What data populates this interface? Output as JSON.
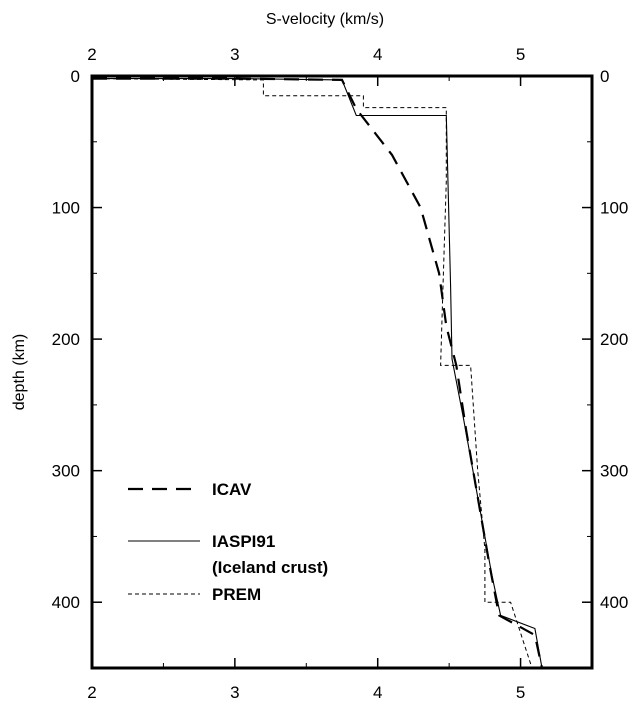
{
  "chart_data": {
    "type": "line",
    "xlabel": "S-velocity (km/s)",
    "ylabel": "depth (km)",
    "xlim": [
      2,
      5.5
    ],
    "ylim": [
      0,
      450
    ],
    "y_inverted": true,
    "x_ticks": [
      2,
      3,
      4,
      5
    ],
    "y_ticks": [
      0,
      100,
      200,
      300,
      400
    ],
    "x_tick_labels": [
      "2",
      "3",
      "4",
      "5"
    ],
    "y_tick_labels": [
      "0",
      "100",
      "200",
      "300",
      "400"
    ],
    "legend_position": "lower-left",
    "series": [
      {
        "name": "ICAV",
        "style": "dashed",
        "color": "#000000",
        "points": [
          [
            2.0,
            2
          ],
          [
            2.5,
            2
          ],
          [
            3.0,
            2
          ],
          [
            3.75,
            3
          ],
          [
            3.85,
            25
          ],
          [
            4.1,
            60
          ],
          [
            4.3,
            100
          ],
          [
            4.43,
            150
          ],
          [
            4.48,
            190
          ],
          [
            4.55,
            220
          ],
          [
            4.62,
            270
          ],
          [
            4.7,
            320
          ],
          [
            4.78,
            370
          ],
          [
            4.85,
            410
          ],
          [
            5.1,
            425
          ],
          [
            5.15,
            450
          ]
        ]
      },
      {
        "name": "IASPI91",
        "style": "solid",
        "color": "#000000",
        "points": [
          [
            2.0,
            2
          ],
          [
            3.0,
            2
          ],
          [
            3.75,
            3
          ],
          [
            3.85,
            30
          ],
          [
            4.48,
            30
          ],
          [
            4.51,
            160
          ],
          [
            4.52,
            215
          ],
          [
            4.6,
            260
          ],
          [
            4.7,
            320
          ],
          [
            4.8,
            380
          ],
          [
            4.86,
            410
          ],
          [
            5.1,
            420
          ],
          [
            5.15,
            450
          ]
        ]
      },
      {
        "name": "PREM",
        "style": "dotted",
        "color": "#000000",
        "points": [
          [
            2.0,
            2
          ],
          [
            3.2,
            3
          ],
          [
            3.2,
            15
          ],
          [
            3.9,
            15
          ],
          [
            3.9,
            24
          ],
          [
            4.48,
            24
          ],
          [
            4.48,
            80
          ],
          [
            4.46,
            150
          ],
          [
            4.44,
            220
          ],
          [
            4.65,
            220
          ],
          [
            4.7,
            300
          ],
          [
            4.75,
            360
          ],
          [
            4.75,
            400
          ],
          [
            4.93,
            400
          ],
          [
            5.02,
            430
          ],
          [
            5.08,
            450
          ]
        ]
      }
    ],
    "legend": [
      {
        "name": "ICAV",
        "style": "dashed"
      },
      {
        "name": "IASPI91",
        "style": "solid",
        "subtitle": "(Iceland crust)"
      },
      {
        "name": "PREM",
        "style": "dotted"
      }
    ]
  }
}
